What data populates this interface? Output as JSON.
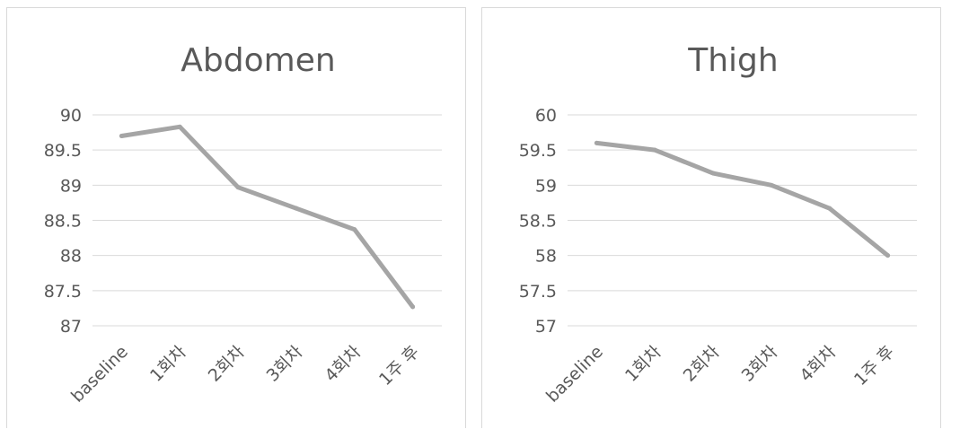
{
  "chart_data": [
    {
      "type": "line",
      "title": "Abdomen",
      "categories": [
        "baseline",
        "1회차",
        "2회차",
        "3회차",
        "4회차",
        "1주 후"
      ],
      "series": [
        {
          "values": [
            89.7,
            89.83,
            88.97,
            88.67,
            88.37,
            87.27
          ]
        }
      ],
      "yticks": [
        "87",
        "87.5",
        "88",
        "88.5",
        "89",
        "89.5",
        "90"
      ],
      "ylim": [
        87,
        90
      ],
      "grid": true,
      "legend": "none",
      "color": "#a5a5a5"
    },
    {
      "type": "line",
      "title": "Thigh",
      "categories": [
        "baseline",
        "1회차",
        "2회차",
        "3회차",
        "4회차",
        "1주 후"
      ],
      "series": [
        {
          "values": [
            59.6,
            59.5,
            59.17,
            59.0,
            58.67,
            58.0
          ]
        }
      ],
      "yticks": [
        "57",
        "57.5",
        "58",
        "58.5",
        "59",
        "59.5",
        "60"
      ],
      "ylim": [
        57,
        60
      ],
      "grid": true,
      "legend": "none",
      "color": "#a5a5a5"
    }
  ]
}
